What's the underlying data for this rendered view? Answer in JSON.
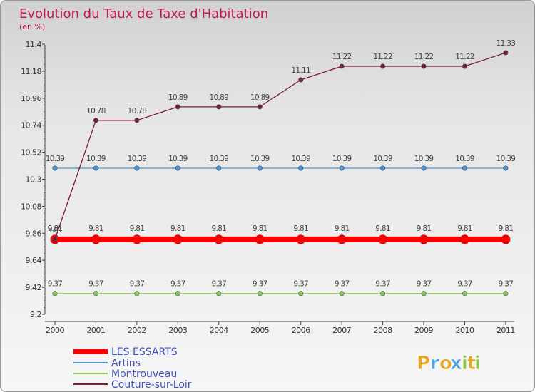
{
  "chart_data": {
    "type": "line",
    "title": "Evolution du Taux de Taxe d'Habitation",
    "subtitle": "(en %)",
    "x": [
      "2000",
      "2001",
      "2002",
      "2003",
      "2004",
      "2005",
      "2006",
      "2007",
      "2008",
      "2009",
      "2010",
      "2011"
    ],
    "yticks": [
      "11.4",
      "11.18",
      "10.96",
      "10.74",
      "10.52",
      "10.3",
      "10.08",
      "9.86",
      "9.64",
      "9.42",
      "9.2"
    ],
    "ylim": [
      9.2,
      11.4
    ],
    "series": [
      {
        "name": "LES ESSARTS",
        "color": "#ff0000",
        "values": [
          9.81,
          9.81,
          9.81,
          9.81,
          9.81,
          9.81,
          9.81,
          9.81,
          9.81,
          9.81,
          9.81,
          9.81
        ],
        "labels": [
          "9.81",
          "9.81",
          "9.81",
          "9.81",
          "9.81",
          "9.81",
          "9.81",
          "9.81",
          "9.81",
          "9.81",
          "9.81",
          "9.81"
        ]
      },
      {
        "name": "Artins",
        "color": "#4f93d0",
        "values": [
          10.39,
          10.39,
          10.39,
          10.39,
          10.39,
          10.39,
          10.39,
          10.39,
          10.39,
          10.39,
          10.39,
          10.39
        ],
        "labels": [
          "10.39",
          "10.39",
          "10.39",
          "10.39",
          "10.39",
          "10.39",
          "10.39",
          "10.39",
          "10.39",
          "10.39",
          "10.39",
          "10.39"
        ]
      },
      {
        "name": "Montrouveau",
        "color": "#8fd14f",
        "values": [
          9.37,
          9.37,
          9.37,
          9.37,
          9.37,
          9.37,
          9.37,
          9.37,
          9.37,
          9.37,
          9.37,
          9.37
        ],
        "labels": [
          "9.37",
          "9.37",
          "9.37",
          "9.37",
          "9.37",
          "9.37",
          "9.37",
          "9.37",
          "9.37",
          "9.37",
          "9.37",
          "9.37"
        ]
      },
      {
        "name": "Couture-sur-Loir",
        "color": "#7a1f2b",
        "values": [
          9.81,
          10.78,
          10.78,
          10.89,
          10.89,
          10.89,
          11.11,
          11.22,
          11.22,
          11.22,
          11.22,
          11.33
        ],
        "labels": [
          "9.81",
          "10.78",
          "10.78",
          "10.89",
          "10.89",
          "10.89",
          "11.11",
          "11.22",
          "11.22",
          "11.22",
          "11.22",
          "11.33"
        ]
      }
    ],
    "legend_position": "bottom-left",
    "grid": false
  },
  "brand": {
    "letters": [
      "P",
      "r",
      "o",
      "x",
      "i",
      "t",
      "i"
    ],
    "colors": [
      "#e8a524",
      "#4aa3df",
      "#e8a524",
      "#4aa3df",
      "#8cc63f",
      "#e8a524",
      "#8cc63f"
    ]
  }
}
